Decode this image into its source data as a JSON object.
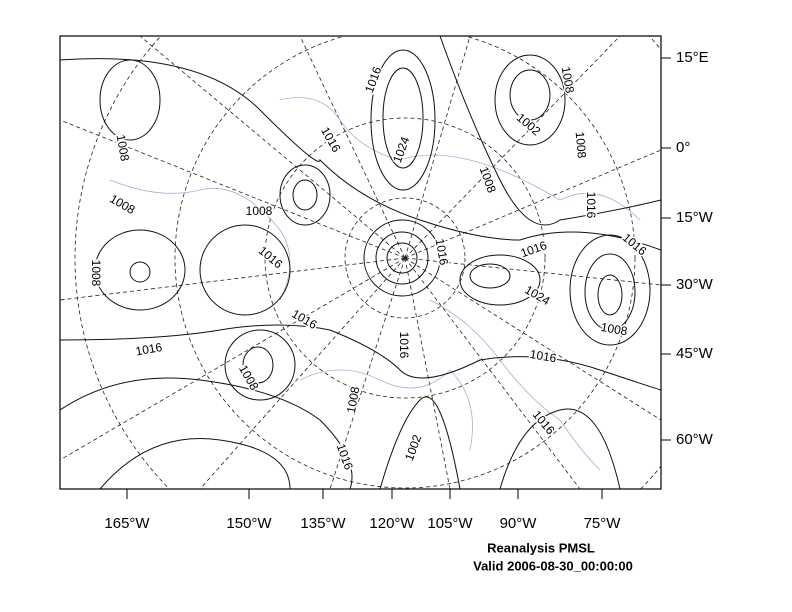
{
  "map": {
    "title": "Reanalysis PMSL",
    "subtitle": "Valid 2006-08-30_00:00:00",
    "bottom_labels": [
      "165°W",
      "150°W",
      "135°W",
      "120°W",
      "105°W",
      "90°W",
      "75°W"
    ],
    "right_labels": [
      "15°E",
      "0°",
      "15°W",
      "30°W",
      "45°W",
      "60°W"
    ],
    "contour_labels": [
      "1016",
      "1016",
      "1024",
      "1008",
      "1002",
      "1008",
      "1008",
      "1008",
      "1008",
      "1008",
      "1016",
      "1016",
      "1016",
      "1016",
      "1016",
      "1008",
      "1024",
      "1008",
      "1016",
      "1016",
      "1016",
      "1016",
      "1008",
      "1008",
      "1016",
      "1016",
      "1002"
    ]
  }
}
